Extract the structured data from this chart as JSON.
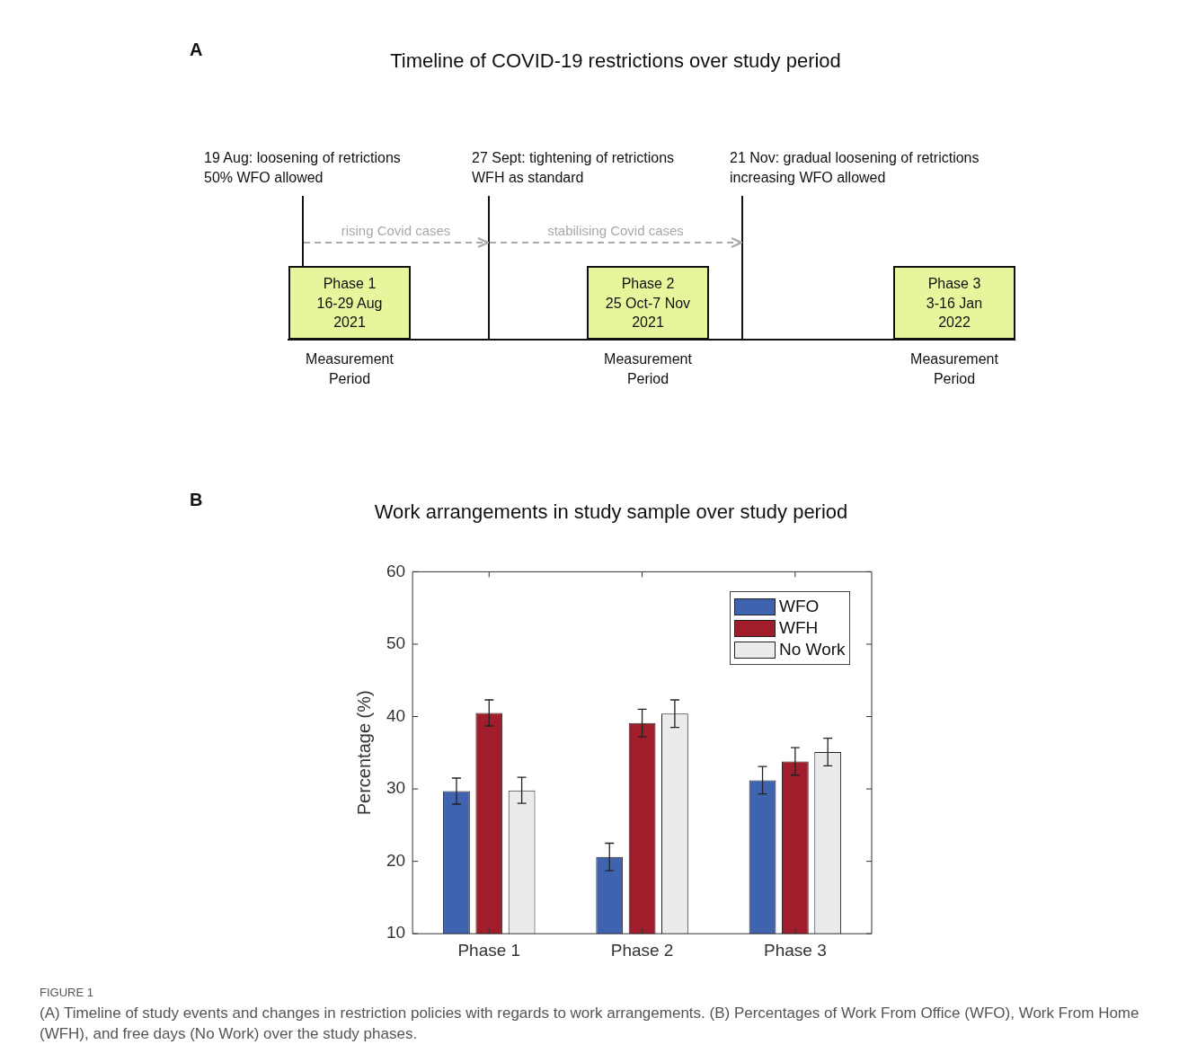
{
  "chart_data": [
    {
      "type": "other",
      "title": "Timeline of COVID-19 restrictions over study period",
      "annotations": [
        "A",
        "19 Aug: loosening of retrictions\n50% WFO allowed",
        "27 Sept: tightening of retrictions\nWFH as standard",
        "21 Nov: gradual loosening of retrictions\nincreasing WFO allowed",
        "rising Covid cases",
        "stabilising Covid cases",
        "Phase 1\n16-29 Aug\n2021",
        "Phase 2\n25 Oct-7 Nov\n2021",
        "Phase 3\n3-16 Jan\n2022",
        "Measurement\nPeriod",
        "Measurement\nPeriod",
        "Measurement\nPeriod"
      ]
    },
    {
      "type": "bar",
      "title": "Work arrangements in study sample over study period",
      "ylabel": "Percentage (%)",
      "categories": [
        "Phase 1",
        "Phase 2",
        "Phase 3"
      ],
      "series": [
        {
          "name": "WFO",
          "color": "#4063b0",
          "values": [
            29.7,
            20.6,
            31.2
          ],
          "errors": [
            1.8,
            1.9,
            1.9
          ]
        },
        {
          "name": "WFH",
          "color": "#a11d2b",
          "values": [
            40.5,
            39.1,
            33.8
          ],
          "errors": [
            1.8,
            1.9,
            1.9
          ]
        },
        {
          "name": "No Work",
          "color": "#ebebeb",
          "values": [
            29.8,
            40.4,
            35.1
          ],
          "errors": [
            1.8,
            1.9,
            1.9
          ]
        }
      ],
      "ylim": [
        10,
        60
      ],
      "yticks": [
        10,
        20,
        30,
        40,
        50,
        60
      ],
      "legend": "top right",
      "annotations": [
        "B",
        "FIGURE 1",
        "(A) Timeline of study events and changes in restriction policies with regards to work arrangements. (B) Percentages of Work From Office (WFO), Work From Home (WFH), and free days (No Work) over the study phases."
      ]
    }
  ]
}
